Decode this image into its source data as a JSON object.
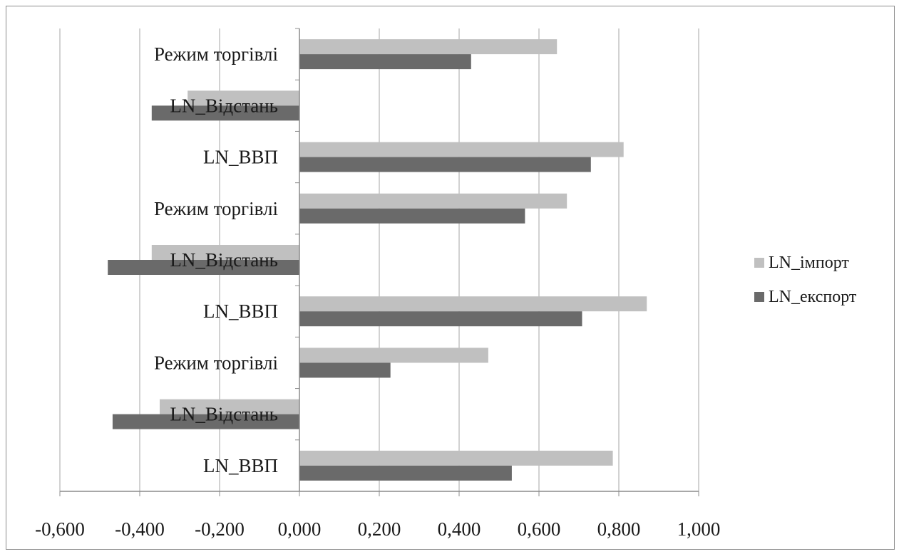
{
  "chart_data": {
    "type": "bar",
    "orientation": "horizontal",
    "categories": [
      "Режим торгівлі",
      "LN_Відстань",
      "LN_ВВП",
      "Режим торгівлі",
      "LN_Відстань",
      "LN_ВВП",
      "Режим торгівлі",
      "LN_Відстань",
      "LN_ВВП"
    ],
    "series": [
      {
        "name": "LN_імпорт",
        "color": "#c0c0c0",
        "values": [
          0.645,
          -0.28,
          0.812,
          0.67,
          -0.37,
          0.87,
          0.473,
          -0.35,
          0.785
        ]
      },
      {
        "name": "LN_експорт",
        "color": "#6a6a6a",
        "values": [
          0.43,
          -0.37,
          0.73,
          0.565,
          -0.48,
          0.708,
          0.228,
          -0.468,
          0.532
        ]
      }
    ],
    "xlim": [
      -0.6,
      1.0
    ],
    "xticks": [
      "-0,600",
      "-0,400",
      "-0,200",
      "0,000",
      "0,200",
      "0,400",
      "0,600",
      "0,800",
      "1,000"
    ],
    "grid": "vertical",
    "legend_position": "right"
  }
}
